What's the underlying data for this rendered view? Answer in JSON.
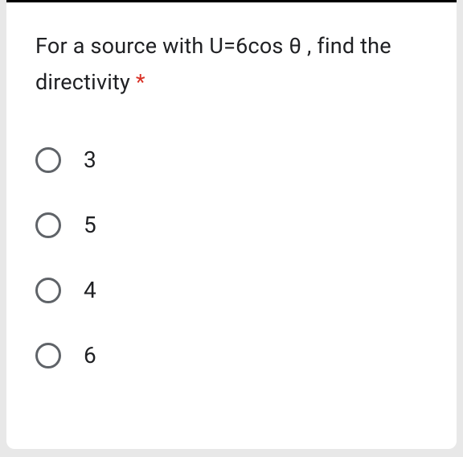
{
  "question": {
    "text": "For a source with U=6cos θ , find the directivity ",
    "required_mark": "*"
  },
  "options": [
    {
      "label": "3"
    },
    {
      "label": "5"
    },
    {
      "label": "4"
    },
    {
      "label": "6"
    }
  ],
  "colors": {
    "card_bg": "#ffffff",
    "page_bg": "#e8e8e8",
    "text": "#202124",
    "radio_border": "#5f6368",
    "required": "#d93025",
    "top_border": "#000000"
  }
}
